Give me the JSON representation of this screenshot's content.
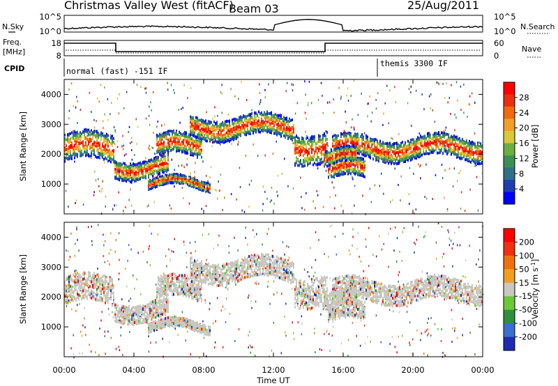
{
  "header": {
    "title": "Christmas Valley West (fitACF)",
    "beam": "Beam 03",
    "date": "25/Aug/2011"
  },
  "left_labels": {
    "nsky": "N.Sky",
    "freq_top": "Freq.",
    "freq_bottom": "[MHz]",
    "cpid": "CPID"
  },
  "right_labels": {
    "nsearch": "N.Search",
    "nave": "Nave"
  },
  "noise_panel": {
    "left_ticks": [
      "10^5",
      "10^0"
    ],
    "right_ticks": [
      "10^5",
      "10^0"
    ]
  },
  "freq_panel": {
    "left_ticks": [
      "18",
      "8"
    ],
    "right_ticks": [
      "60",
      "0"
    ]
  },
  "cpid_panel": {
    "label1": "normal (fast) -151 IF",
    "label2": "themis 3300 IF"
  },
  "chart_data": [
    {
      "type": "heatmap",
      "name": "Power",
      "ylabel": "Slant Range [km]",
      "ylim": [
        0,
        4500
      ],
      "yticks": [
        "1000",
        "2000",
        "3000",
        "4000"
      ],
      "colorbar_label": "Power [dB]",
      "colorbar_ticks": [
        "4",
        "8",
        "12",
        "16",
        "20",
        "24",
        "28"
      ],
      "colors": [
        "#0000ff",
        "#1e3fb0",
        "#2f6f8a",
        "#3e8f55",
        "#6ab040",
        "#d8c83a",
        "#f0a02a",
        "#f06a10",
        "#e83010",
        "#ff0000"
      ]
    },
    {
      "type": "heatmap",
      "name": "Velocity",
      "ylabel": "Slant Range [km]",
      "ylim": [
        0,
        4500
      ],
      "yticks": [
        "1000",
        "2000",
        "3000",
        "4000"
      ],
      "colorbar_label": "Velocity [m s",
      "colorbar_label_sup": "-1",
      "colorbar_label_end": "]",
      "colorbar_ticks": [
        "200",
        "100",
        "50",
        "15",
        "-15",
        "-50",
        "-100",
        "-200"
      ],
      "colors": [
        "#1e2bb0",
        "#3a6fd0",
        "#2f8f3f",
        "#6cc83a",
        "#c8c8c0",
        "#f0a020",
        "#f07010",
        "#f03010",
        "#ff0000"
      ]
    }
  ],
  "x_axis": {
    "label": "Time UT",
    "ticks": [
      "00:00",
      "04:00",
      "08:00",
      "12:00",
      "16:00",
      "20:00",
      "00:00"
    ]
  }
}
